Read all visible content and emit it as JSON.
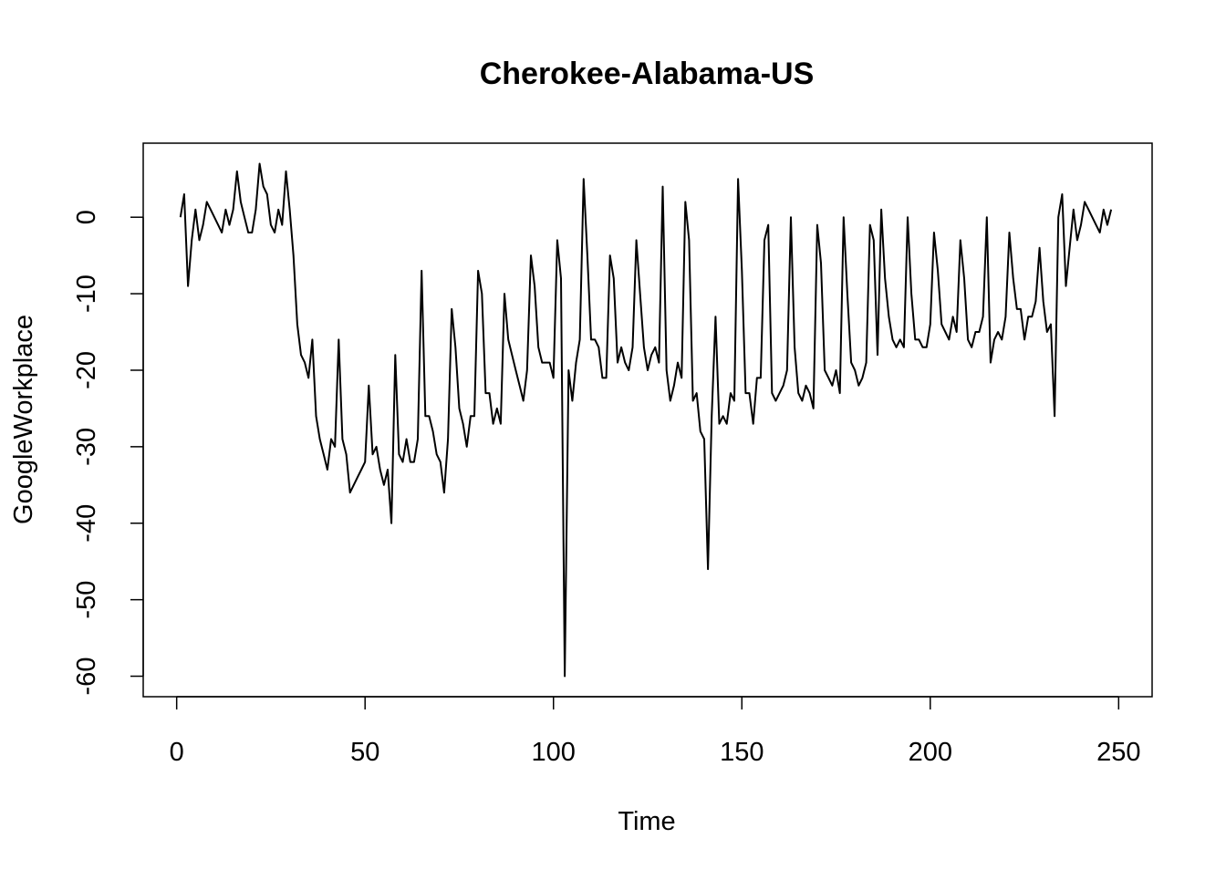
{
  "chart_data": {
    "type": "line",
    "title": "Cherokee-Alabama-US",
    "xlabel": "Time",
    "ylabel": "GoogleWorkplace",
    "xlim": [
      -8.88,
      258.88
    ],
    "ylim": [
      -62.68,
      9.68
    ],
    "xticks": [
      0,
      50,
      100,
      150,
      200,
      250
    ],
    "yticks": [
      -60,
      -50,
      -40,
      -30,
      -20,
      -10,
      0
    ],
    "grid": false,
    "legend": "none",
    "line_color": "#000000",
    "series": [
      {
        "x": [
          1,
          2,
          3,
          4,
          5,
          6,
          7,
          8,
          9,
          10,
          11,
          12,
          13,
          14,
          15,
          16,
          17,
          18,
          19,
          20,
          21,
          22,
          23,
          24,
          25,
          26,
          27,
          28,
          29,
          30,
          31,
          32,
          33,
          34,
          35,
          36,
          37,
          38,
          39,
          40,
          41,
          42,
          43,
          44,
          45,
          46,
          47,
          48,
          49,
          50,
          51,
          52,
          53,
          54,
          55,
          56,
          57,
          58,
          59,
          60,
          61,
          62,
          63,
          64,
          65,
          66,
          67,
          68,
          69,
          70,
          71,
          72,
          73,
          74,
          75,
          76,
          77,
          78,
          79,
          80,
          81,
          82,
          83,
          84,
          85,
          86,
          87,
          88,
          89,
          90,
          91,
          92,
          93,
          94,
          95,
          96,
          97,
          98,
          99,
          100,
          101,
          102,
          103,
          104,
          105,
          106,
          107,
          108,
          109,
          110,
          111,
          112,
          113,
          114,
          115,
          116,
          117,
          118,
          119,
          120,
          121,
          122,
          123,
          124,
          125,
          126,
          127,
          128,
          129,
          130,
          131,
          132,
          133,
          134,
          135,
          136,
          137,
          138,
          139,
          140,
          141,
          142,
          143,
          144,
          145,
          146,
          147,
          148,
          149,
          150,
          151,
          152,
          153,
          154,
          155,
          156,
          157,
          158,
          159,
          160,
          161,
          162,
          163,
          164,
          165,
          166,
          167,
          168,
          169,
          170,
          171,
          172,
          173,
          174,
          175,
          176,
          177,
          178,
          179,
          180,
          181,
          182,
          183,
          184,
          185,
          186,
          187,
          188,
          189,
          190,
          191,
          192,
          193,
          194,
          195,
          196,
          197,
          198,
          199,
          200,
          201,
          202,
          203,
          204,
          205,
          206,
          207,
          208,
          209,
          210,
          211,
          212,
          213,
          214,
          215,
          216,
          217,
          218,
          219,
          220,
          221,
          222,
          223,
          224,
          225,
          226,
          227,
          228,
          229,
          230,
          231,
          232,
          233,
          234,
          235,
          236,
          237,
          238,
          239,
          240,
          241,
          242,
          243,
          244,
          245,
          246,
          247,
          248
        ],
        "y": [
          0,
          3,
          -9,
          -3,
          1,
          -3,
          -1,
          2,
          1,
          0,
          -1,
          -2,
          1,
          -1,
          1,
          6,
          2,
          0,
          -2,
          -2,
          1,
          7,
          4,
          3,
          -1,
          -2,
          1,
          -1,
          6,
          1,
          -5,
          -14,
          -18,
          -19,
          -21,
          -16,
          -26,
          -29,
          -31,
          -33,
          -29,
          -30,
          -16,
          -29,
          -31,
          -36,
          -35,
          -34,
          -33,
          -32,
          -22,
          -31,
          -30,
          -33,
          -35,
          -33,
          -40,
          -18,
          -31,
          -32,
          -29,
          -32,
          -32,
          -29,
          -7,
          -26,
          -26,
          -28,
          -31,
          -32,
          -36,
          -29,
          -12,
          -17,
          -25,
          -27,
          -30,
          -26,
          -26,
          -7,
          -10,
          -23,
          -23,
          -27,
          -25,
          -27,
          -10,
          -16,
          -18,
          -20,
          -22,
          -24,
          -20,
          -5,
          -9,
          -17,
          -19,
          -19,
          -19,
          -21,
          -3,
          -8,
          -60,
          -20,
          -24,
          -19,
          -16,
          5,
          -5,
          -16,
          -16,
          -17,
          -21,
          -21,
          -5,
          -8,
          -19,
          -17,
          -19,
          -20,
          -17,
          -3,
          -10,
          -17,
          -20,
          -18,
          -17,
          -19,
          4,
          -20,
          -24,
          -22,
          -19,
          -21,
          2,
          -3,
          -24,
          -23,
          -28,
          -29,
          -46,
          -26,
          -13,
          -27,
          -26,
          -27,
          -23,
          -24,
          5,
          -7,
          -23,
          -23,
          -27,
          -21,
          -21,
          -3,
          -1,
          -23,
          -24,
          -23,
          -22,
          -20,
          0,
          -17,
          -23,
          -24,
          -22,
          -23,
          -25,
          -1,
          -6,
          -20,
          -21,
          -22,
          -20,
          -23,
          0,
          -10,
          -19,
          -20,
          -22,
          -21,
          -19,
          -1,
          -3,
          -18,
          1,
          -8,
          -13,
          -16,
          -17,
          -16,
          -17,
          0,
          -10,
          -16,
          -16,
          -17,
          -17,
          -14,
          -2,
          -7,
          -14,
          -15,
          -16,
          -13,
          -15,
          -3,
          -8,
          -16,
          -17,
          -15,
          -15,
          -13,
          0,
          -19,
          -16,
          -15,
          -16,
          -13,
          -2,
          -8,
          -12,
          -12,
          -16,
          -13,
          -13,
          -11,
          -4,
          -11,
          -15,
          -14,
          -26,
          0,
          3,
          -9,
          -4,
          1,
          -3,
          -1,
          2,
          1,
          0,
          -1,
          -2,
          1,
          -1,
          1
        ]
      }
    ]
  }
}
